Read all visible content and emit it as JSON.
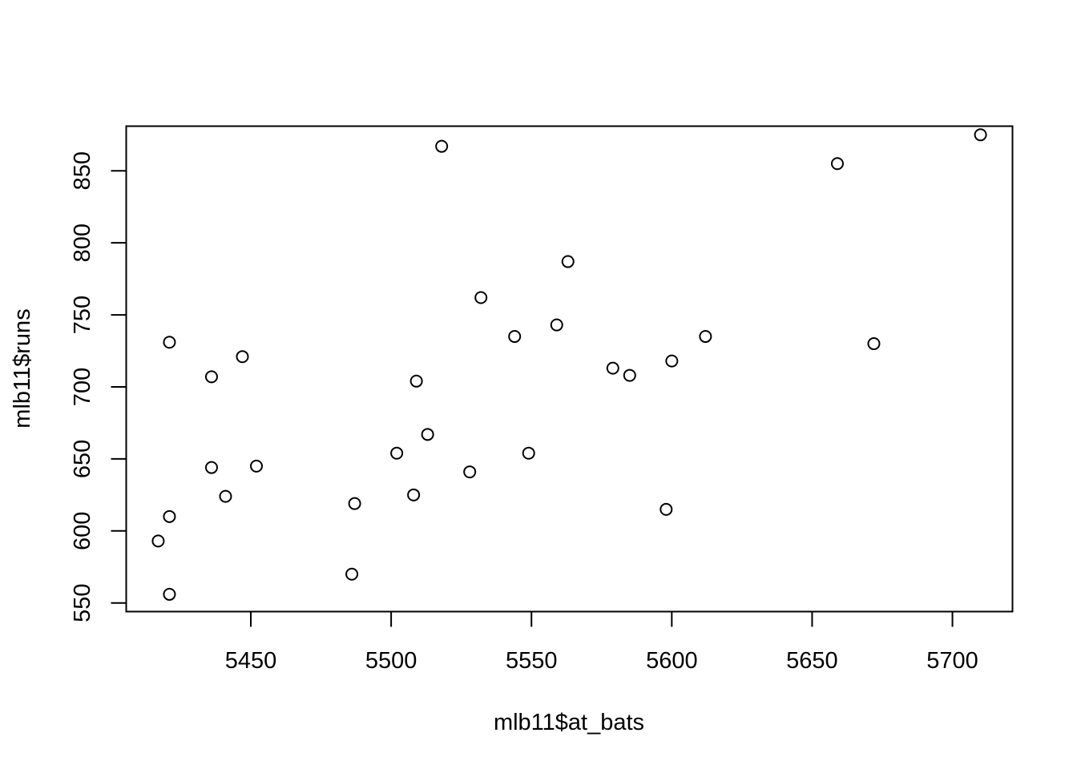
{
  "chart_data": {
    "type": "scatter",
    "title": "",
    "xlabel": "mlb11$at_bats",
    "ylabel": "mlb11$runs",
    "xlim": [
      5405.6,
      5721.4
    ],
    "ylim": [
      544,
      881
    ],
    "xticks": [
      5450,
      5500,
      5550,
      5600,
      5650,
      5700
    ],
    "yticks": [
      550,
      600,
      650,
      700,
      750,
      800,
      850
    ],
    "grid": false,
    "legend": "none",
    "marker": "open-circle",
    "points": [
      {
        "x": 5710,
        "y": 875
      },
      {
        "x": 5659,
        "y": 855
      },
      {
        "x": 5518,
        "y": 867
      },
      {
        "x": 5563,
        "y": 787
      },
      {
        "x": 5532,
        "y": 762
      },
      {
        "x": 5559,
        "y": 743
      },
      {
        "x": 5544,
        "y": 735
      },
      {
        "x": 5612,
        "y": 735
      },
      {
        "x": 5672,
        "y": 730
      },
      {
        "x": 5421,
        "y": 731
      },
      {
        "x": 5447,
        "y": 721
      },
      {
        "x": 5600,
        "y": 718
      },
      {
        "x": 5579,
        "y": 713
      },
      {
        "x": 5585,
        "y": 708
      },
      {
        "x": 5436,
        "y": 707
      },
      {
        "x": 5509,
        "y": 704
      },
      {
        "x": 5513,
        "y": 667
      },
      {
        "x": 5502,
        "y": 654
      },
      {
        "x": 5549,
        "y": 654
      },
      {
        "x": 5452,
        "y": 645
      },
      {
        "x": 5436,
        "y": 644
      },
      {
        "x": 5528,
        "y": 641
      },
      {
        "x": 5508,
        "y": 625
      },
      {
        "x": 5441,
        "y": 624
      },
      {
        "x": 5487,
        "y": 619
      },
      {
        "x": 5598,
        "y": 615
      },
      {
        "x": 5421,
        "y": 610
      },
      {
        "x": 5417,
        "y": 593
      },
      {
        "x": 5486,
        "y": 570
      },
      {
        "x": 5421,
        "y": 556
      }
    ]
  }
}
